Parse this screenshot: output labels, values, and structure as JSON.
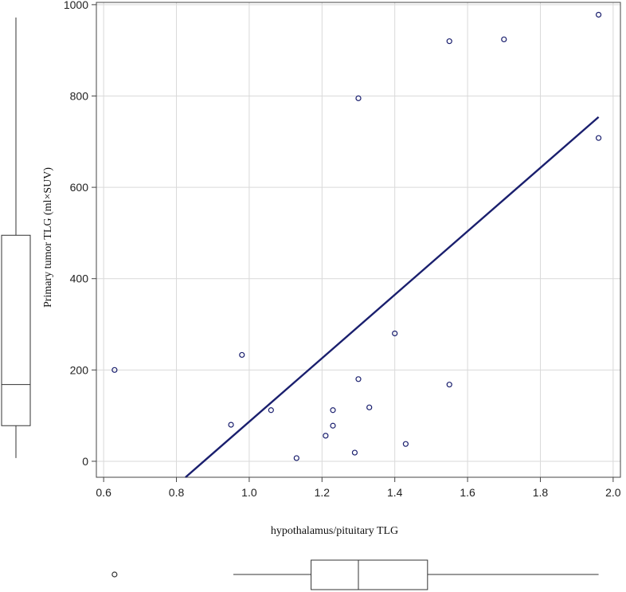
{
  "chart_data": {
    "type": "scatter",
    "title": "",
    "xlabel": "hypothalamus/pituitary  TLG",
    "ylabel": "Primary  tumor TLG  (ml×SUV)",
    "xlim": [
      0.58,
      2.02
    ],
    "ylim": [
      -35,
      1005
    ],
    "x_ticks": [
      "0.6",
      "0.8",
      "1.0",
      "1.2",
      "1.4",
      "1.6",
      "1.8",
      "2.0"
    ],
    "y_ticks": [
      "0",
      "200",
      "400",
      "600",
      "800",
      "1000"
    ],
    "grid": true,
    "points": [
      {
        "x": 0.63,
        "y": 200
      },
      {
        "x": 0.95,
        "y": 80
      },
      {
        "x": 0.98,
        "y": 233
      },
      {
        "x": 1.06,
        "y": 112
      },
      {
        "x": 1.13,
        "y": 7
      },
      {
        "x": 1.21,
        "y": 56
      },
      {
        "x": 1.23,
        "y": 112
      },
      {
        "x": 1.23,
        "y": 78
      },
      {
        "x": 1.29,
        "y": 19
      },
      {
        "x": 1.3,
        "y": 180
      },
      {
        "x": 1.3,
        "y": 795
      },
      {
        "x": 1.33,
        "y": 118
      },
      {
        "x": 1.4,
        "y": 280
      },
      {
        "x": 1.43,
        "y": 38
      },
      {
        "x": 1.55,
        "y": 168
      },
      {
        "x": 1.55,
        "y": 920
      },
      {
        "x": 1.7,
        "y": 924
      },
      {
        "x": 1.96,
        "y": 978
      },
      {
        "x": 1.96,
        "y": 708
      }
    ],
    "regression_line": {
      "x": [
        0.825,
        1.96
      ],
      "y": [
        -35,
        754
      ]
    },
    "x_boxplot": {
      "outliers": [
        0.63
      ],
      "whisker_low": 0.95,
      "q1": 1.17,
      "median": 1.3,
      "q3": 1.49,
      "whisker_high": 1.96
    },
    "y_boxplot": {
      "whisker_low": 7,
      "q1": 78,
      "median": 168,
      "q3": 495,
      "whisker_high": 978
    }
  }
}
